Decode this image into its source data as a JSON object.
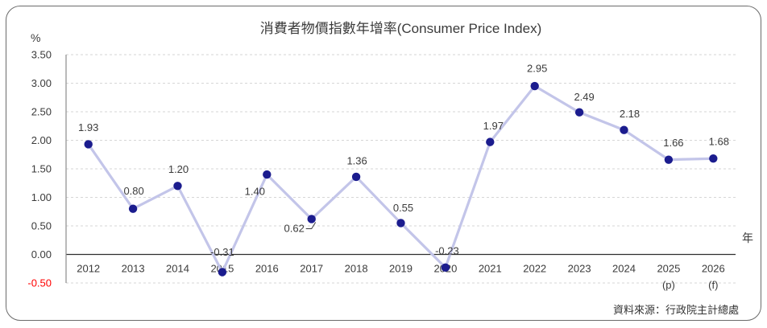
{
  "title": "消費者物價指數年增率(Consumer Price Index)",
  "y_axis": {
    "unit_label": "%",
    "tick_labels": [
      "3.50",
      "3.00",
      "2.50",
      "2.00",
      "1.50",
      "1.00",
      "0.50",
      "0.00",
      "-0.50"
    ],
    "negative_tick_color": "#ff0000"
  },
  "x_axis": {
    "unit_label": "年"
  },
  "source_note": "資料來源：行政院主計總處",
  "colors": {
    "line": "#c3c5e9",
    "marker": "#1b1c8e",
    "grid": "#d6d6d6",
    "zero_line": "#2e2e2e",
    "axis_border": "#8c8c8c",
    "text": "#3b3b3b",
    "negative_tick": "#ff0000",
    "frame_border": "#6b6b6b"
  },
  "chart_data": {
    "type": "line",
    "title": "消費者物價指數年增率(Consumer Price Index)",
    "categories": [
      "2012",
      "2013",
      "2014",
      "2015",
      "2016",
      "2017",
      "2018",
      "2019",
      "2020",
      "2021",
      "2022",
      "2023",
      "2024",
      "2025",
      "2026"
    ],
    "category_notes": [
      "",
      "",
      "",
      "",
      "",
      "",
      "",
      "",
      "",
      "",
      "",
      "",
      "",
      "(p)",
      "(f)"
    ],
    "series": [
      {
        "name": "消費者物價指數年增率",
        "values": [
          1.93,
          0.8,
          1.2,
          -0.31,
          1.4,
          0.62,
          1.36,
          0.55,
          -0.23,
          1.97,
          2.95,
          2.49,
          2.18,
          1.66,
          1.68
        ],
        "point_labels": [
          "1.93",
          "0.80",
          "1.20",
          "-0.31",
          "1.40",
          "0.62",
          "1.36",
          "0.55",
          "-0.23",
          "1.97",
          "2.95",
          "2.49",
          "2.18",
          "1.66",
          "1.68"
        ]
      }
    ],
    "ylim": [
      -0.5,
      3.5
    ],
    "y_tick_step": 0.5,
    "grid": "horizontal-dashed",
    "legend": "none",
    "xlabel": "年",
    "ylabel": "%"
  }
}
